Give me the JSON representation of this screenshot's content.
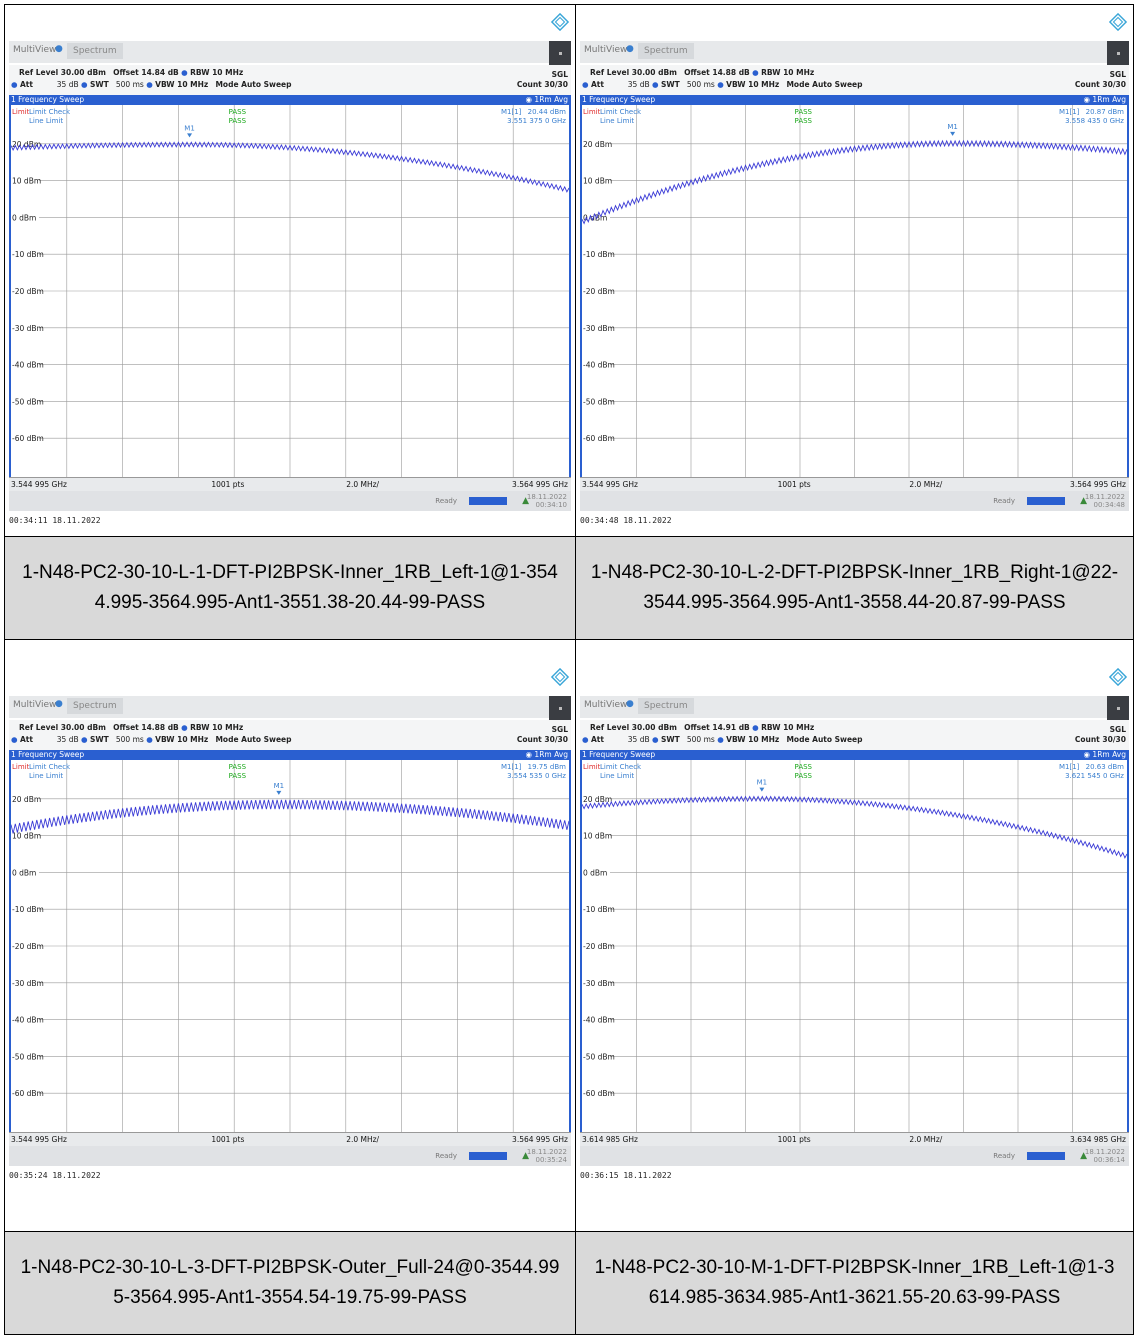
{
  "panels": [
    {
      "multiview_label": "MultiView",
      "spectrum_label": "Spectrum",
      "ref_level": "Ref Level 30.00 dBm",
      "offset": "Offset 14.84 dB",
      "rbw": "RBW 10 MHz",
      "att": "Att",
      "att_value": "35 dB",
      "swt": "SWT",
      "swt_value": "500 ms",
      "vbw": "VBW 10 MHz",
      "mode": "Mode Auto Sweep",
      "sgl": "SGL",
      "count": "Count 30/30",
      "sweep_title": "1 Frequency Sweep",
      "trace_mode": "1Rm Avg",
      "limit_label": "Limit",
      "limit_check": "Limit Check",
      "line_limit": "Line Limit",
      "pass1": "PASS",
      "pass2": "PASS",
      "marker_label": "M1",
      "marker_name": "M1[1]",
      "marker_level": "20.44 dBm",
      "marker_freq": "3.551 375 0 GHz",
      "y_ticks": [
        "20 dBm",
        "10 dBm",
        "0 dBm",
        "-10 dBm",
        "-20 dBm",
        "-30 dBm",
        "-40 dBm",
        "-50 dBm",
        "-60 dBm"
      ],
      "start_freq": "3.544 995 GHz",
      "points": "1001 pts",
      "span": "2.0 MHz/",
      "stop_freq": "3.564 995 GHz",
      "status": "Ready",
      "status_date": "18.11.2022",
      "status_time": "00:34:10",
      "timestamp": "00:34:11  18.11.2022",
      "caption": "1-N48-PC2-30-10-L-1-DFT-PI2BPSK-Inner_1RB_Left-1@1-3544.995-3564.995-Ant1-3551.38-20.44-99-PASS",
      "trace": {
        "start_db": 19.5,
        "peak_db": 20.4,
        "peak_frac": 0.32,
        "end_db": 8.0,
        "ripple": 1.2
      },
      "marker_frac": 0.32
    },
    {
      "multiview_label": "MultiView",
      "spectrum_label": "Spectrum",
      "ref_level": "Ref Level 30.00 dBm",
      "offset": "Offset 14.88 dB",
      "rbw": "RBW 10 MHz",
      "att": "Att",
      "att_value": "35 dB",
      "swt": "SWT",
      "swt_value": "500 ms",
      "vbw": "VBW 10 MHz",
      "mode": "Mode Auto Sweep",
      "sgl": "SGL",
      "count": "Count 30/30",
      "sweep_title": "1 Frequency Sweep",
      "trace_mode": "1Rm Avg",
      "limit_label": "Limit",
      "limit_check": "Limit Check",
      "line_limit": "Line Limit",
      "pass1": "PASS",
      "pass2": "PASS",
      "marker_label": "M1",
      "marker_name": "M1[1]",
      "marker_level": "20.87 dBm",
      "marker_freq": "3.558 435 0 GHz",
      "y_ticks": [
        "20 dBm",
        "10 dBm",
        "0 dBm",
        "-10 dBm",
        "-20 dBm",
        "-30 dBm",
        "-40 dBm",
        "-50 dBm",
        "-60 dBm"
      ],
      "start_freq": "3.544 995 GHz",
      "points": "1001 pts",
      "span": "2.0 MHz/",
      "stop_freq": "3.564 995 GHz",
      "status": "Ready",
      "status_date": "18.11.2022",
      "status_time": "00:34:48",
      "timestamp": "00:34:48  18.11.2022",
      "caption": "1-N48-PC2-30-10-L-2-DFT-PI2BPSK-Inner_1RB_Right-1@22-3544.995-3564.995-Ant1-3558.44-20.87-99-PASS",
      "trace": {
        "start_db": -0.5,
        "peak_db": 20.8,
        "peak_frac": 0.68,
        "end_db": 18.5,
        "ripple": 1.4
      },
      "marker_frac": 0.68
    },
    {
      "multiview_label": "MultiView",
      "spectrum_label": "Spectrum",
      "ref_level": "Ref Level 30.00 dBm",
      "offset": "Offset 14.88 dB",
      "rbw": "RBW 10 MHz",
      "att": "Att",
      "att_value": "35 dB",
      "swt": "SWT",
      "swt_value": "500 ms",
      "vbw": "VBW 10 MHz",
      "mode": "Mode Auto Sweep",
      "sgl": "SGL",
      "count": "Count 30/30",
      "sweep_title": "1 Frequency Sweep",
      "trace_mode": "1Rm Avg",
      "limit_label": "Limit",
      "limit_check": "Limit Check",
      "line_limit": "Line Limit",
      "pass1": "PASS",
      "pass2": "PASS",
      "marker_label": "M1",
      "marker_name": "M1[1]",
      "marker_level": "19.75 dBm",
      "marker_freq": "3.554 535 0 GHz",
      "y_ticks": [
        "20 dBm",
        "10 dBm",
        "0 dBm",
        "-10 dBm",
        "-20 dBm",
        "-30 dBm",
        "-40 dBm",
        "-50 dBm",
        "-60 dBm"
      ],
      "start_freq": "3.544 995 GHz",
      "points": "1001 pts",
      "span": "2.0 MHz/",
      "stop_freq": "3.564 995 GHz",
      "status": "Ready",
      "status_date": "18.11.2022",
      "status_time": "00:35:24",
      "timestamp": "00:35:24  18.11.2022",
      "caption": "1-N48-PC2-30-10-L-3-DFT-PI2BPSK-Outer_Full-24@0-3544.995-3564.995-Ant1-3554.54-19.75-99-PASS",
      "trace": {
        "start_db": 13.0,
        "peak_db": 19.7,
        "peak_frac": 0.48,
        "end_db": 14.0,
        "ripple": 2.5
      },
      "marker_frac": 0.48
    },
    {
      "multiview_label": "MultiView",
      "spectrum_label": "Spectrum",
      "ref_level": "Ref Level 30.00 dBm",
      "offset": "Offset 14.91 dB",
      "rbw": "RBW 10 MHz",
      "att": "Att",
      "att_value": "35 dB",
      "swt": "SWT",
      "swt_value": "500 ms",
      "vbw": "VBW 10 MHz",
      "mode": "Mode Auto Sweep",
      "sgl": "SGL",
      "count": "Count 30/30",
      "sweep_title": "1 Frequency Sweep",
      "trace_mode": "1Rm Avg",
      "limit_label": "Limit",
      "limit_check": "Limit Check",
      "line_limit": "Line Limit",
      "pass1": "PASS",
      "pass2": "PASS",
      "marker_label": "M1",
      "marker_name": "M1[1]",
      "marker_level": "20.63 dBm",
      "marker_freq": "3.621 545 0 GHz",
      "y_ticks": [
        "20 dBm",
        "10 dBm",
        "0 dBm",
        "-10 dBm",
        "-20 dBm",
        "-30 dBm",
        "-40 dBm",
        "-50 dBm",
        "-60 dBm"
      ],
      "start_freq": "3.614 985 GHz",
      "points": "1001 pts",
      "span": "2.0 MHz/",
      "stop_freq": "3.634 985 GHz",
      "status": "Ready",
      "status_date": "18.11.2022",
      "status_time": "00:36:14",
      "timestamp": "00:36:15  18.11.2022",
      "caption": "1-N48-PC2-30-10-M-1-DFT-PI2BPSK-Inner_1RB_Left-1@1-3614.985-3634.985-Ant1-3621.55-20.63-99-PASS",
      "trace": {
        "start_db": 18.5,
        "peak_db": 20.6,
        "peak_frac": 0.33,
        "end_db": 5.0,
        "ripple": 1.2
      },
      "marker_frac": 0.33
    }
  ],
  "colors": {
    "trace": "#3b3bd6",
    "accent": "#2a5fd0",
    "pass": "#1aa81a",
    "limit": "#e03030",
    "marker": "#3a7fcf"
  }
}
